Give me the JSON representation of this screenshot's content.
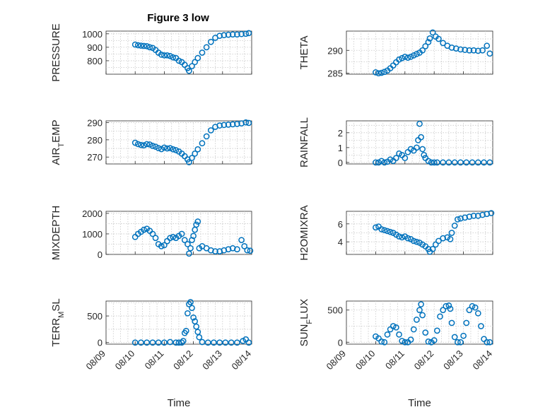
{
  "figure": {
    "title": "Figure 3 low",
    "marker_color": "#0072BD"
  },
  "chart_data": [
    {
      "type": "scatter",
      "ylabel": "PRESSURE",
      "xlabel": "",
      "ylim": [
        700,
        1020
      ],
      "yticks": [
        800,
        900,
        1000
      ],
      "xlim": [
        "08/09",
        "08/14"
      ],
      "xticklabels": [],
      "grid": true,
      "x": [
        1.0,
        1.1,
        1.2,
        1.3,
        1.4,
        1.5,
        1.6,
        1.7,
        1.8,
        1.9,
        2.0,
        2.1,
        2.2,
        2.3,
        2.4,
        2.5,
        2.6,
        2.7,
        2.8,
        2.85,
        2.95,
        3.05,
        3.15,
        3.3,
        3.45,
        3.6,
        3.75,
        3.9,
        4.05,
        4.2,
        4.35,
        4.5,
        4.65,
        4.8,
        4.9
      ],
      "y": [
        920,
        915,
        912,
        910,
        908,
        900,
        895,
        880,
        860,
        845,
        840,
        840,
        835,
        825,
        820,
        800,
        790,
        770,
        745,
        725,
        760,
        790,
        820,
        860,
        900,
        940,
        970,
        985,
        990,
        993,
        995,
        995,
        998,
        1000,
        1005
      ]
    },
    {
      "type": "scatter",
      "ylabel": "THETA",
      "xlabel": "",
      "ylim": [
        284.8,
        294.2
      ],
      "yticks": [
        285,
        290
      ],
      "xlim": [
        "08/09",
        "08/14"
      ],
      "xticklabels": [],
      "grid": true,
      "x": [
        1.0,
        1.1,
        1.2,
        1.3,
        1.4,
        1.5,
        1.6,
        1.7,
        1.8,
        1.9,
        2.0,
        2.1,
        2.2,
        2.3,
        2.4,
        2.5,
        2.6,
        2.7,
        2.8,
        2.85,
        2.95,
        3.05,
        3.15,
        3.3,
        3.45,
        3.6,
        3.75,
        3.9,
        4.05,
        4.2,
        4.35,
        4.5,
        4.65,
        4.8,
        4.9
      ],
      "y": [
        285.2,
        285.0,
        285.1,
        285.3,
        285.6,
        286.1,
        286.7,
        287.4,
        288.0,
        288.3,
        288.6,
        288.4,
        288.6,
        288.9,
        289.2,
        289.5,
        290.0,
        290.9,
        291.8,
        292.6,
        293.9,
        293.0,
        292.5,
        291.6,
        291.0,
        290.6,
        290.4,
        290.2,
        290.1,
        290.0,
        290.0,
        289.9,
        290.0,
        291.0,
        289.3
      ]
    },
    {
      "type": "scatter",
      "ylabel": "AIR_TEMP",
      "xlabel": "",
      "ylim": [
        266,
        291
      ],
      "yticks": [
        270,
        280,
        290
      ],
      "xlim": [
        "08/09",
        "08/14"
      ],
      "xticklabels": [],
      "grid": true,
      "x": [
        1.0,
        1.1,
        1.2,
        1.3,
        1.4,
        1.5,
        1.6,
        1.7,
        1.8,
        1.9,
        2.0,
        2.1,
        2.2,
        2.3,
        2.4,
        2.5,
        2.6,
        2.7,
        2.8,
        2.85,
        2.95,
        3.05,
        3.15,
        3.3,
        3.45,
        3.6,
        3.75,
        3.9,
        4.05,
        4.2,
        4.35,
        4.5,
        4.65,
        4.8,
        4.9
      ],
      "y": [
        278.3,
        277.5,
        277.0,
        276.8,
        277.5,
        277.3,
        276.5,
        276.0,
        275.2,
        274.6,
        275.5,
        275.0,
        275.2,
        274.5,
        274.0,
        273.2,
        272.0,
        270.5,
        268.6,
        267.0,
        269.5,
        272.0,
        274.5,
        278.0,
        282.0,
        285.5,
        287.5,
        288.3,
        288.6,
        288.8,
        289.0,
        289.2,
        289.5,
        290.1,
        289.8
      ]
    },
    {
      "type": "scatter",
      "ylabel": "RAINFALL",
      "xlabel": "",
      "ylim": [
        -0.1,
        2.8
      ],
      "yticks": [
        0,
        1,
        2
      ],
      "xlim": [
        "08/09",
        "08/14"
      ],
      "xticklabels": [],
      "grid": true,
      "x": [
        1.0,
        1.1,
        1.2,
        1.3,
        1.4,
        1.5,
        1.6,
        1.7,
        1.8,
        1.9,
        2.0,
        2.1,
        2.2,
        2.3,
        2.4,
        2.45,
        2.5,
        2.55,
        2.6,
        2.65,
        2.7,
        2.8,
        2.9,
        3.0,
        3.1,
        3.3,
        3.5,
        3.7,
        3.9,
        4.1,
        4.3,
        4.5,
        4.7,
        4.9
      ],
      "y": [
        0,
        0,
        0.1,
        0,
        0.05,
        0.2,
        0.1,
        0.3,
        0.6,
        0.5,
        0.3,
        0.7,
        0.9,
        0.8,
        1.0,
        1.5,
        2.6,
        1.7,
        0.9,
        0.5,
        0.3,
        0.1,
        0,
        0,
        0,
        0,
        0,
        0,
        0,
        0,
        0,
        0,
        0,
        0
      ]
    },
    {
      "type": "scatter",
      "ylabel": "MIXDEPTH",
      "xlabel": "",
      "ylim": [
        0,
        2100
      ],
      "yticks": [
        0,
        1000,
        2000
      ],
      "xlim": [
        "08/09",
        "08/14"
      ],
      "xticklabels": [],
      "grid": true,
      "x": [
        1.0,
        1.1,
        1.2,
        1.3,
        1.4,
        1.5,
        1.6,
        1.7,
        1.8,
        1.9,
        2.0,
        2.1,
        2.2,
        2.3,
        2.4,
        2.5,
        2.6,
        2.7,
        2.8,
        2.85,
        2.9,
        2.95,
        3.0,
        3.05,
        3.1,
        3.15,
        3.2,
        3.3,
        3.45,
        3.6,
        3.75,
        3.9,
        4.05,
        4.2,
        4.35,
        4.5,
        4.65,
        4.75,
        4.85,
        4.95
      ],
      "y": [
        850,
        1000,
        1100,
        1200,
        1250,
        1150,
        1000,
        800,
        500,
        400,
        450,
        650,
        800,
        850,
        800,
        900,
        1000,
        700,
        500,
        40,
        300,
        700,
        900,
        1200,
        1450,
        1600,
        300,
        400,
        300,
        200,
        150,
        150,
        200,
        250,
        300,
        250,
        700,
        400,
        200,
        180
      ]
    },
    {
      "type": "scatter",
      "ylabel": "H2OMIXRA",
      "xlabel": "",
      "ylim": [
        2.6,
        7.4
      ],
      "yticks": [
        4,
        6
      ],
      "xlim": [
        "08/09",
        "08/14"
      ],
      "xticklabels": [],
      "grid": true,
      "x": [
        1.0,
        1.1,
        1.2,
        1.3,
        1.4,
        1.5,
        1.6,
        1.7,
        1.8,
        1.9,
        2.0,
        2.1,
        2.2,
        2.3,
        2.4,
        2.5,
        2.6,
        2.7,
        2.8,
        2.85,
        2.95,
        3.05,
        3.15,
        3.3,
        3.45,
        3.55,
        3.6,
        3.7,
        3.8,
        3.9,
        4.05,
        4.2,
        4.35,
        4.5,
        4.65,
        4.8,
        4.95
      ],
      "y": [
        5.6,
        5.7,
        5.4,
        5.3,
        5.2,
        5.1,
        5.0,
        4.8,
        4.6,
        4.5,
        4.6,
        4.4,
        4.3,
        4.1,
        4.0,
        3.9,
        3.7,
        3.5,
        3.2,
        2.9,
        3.2,
        3.7,
        4.1,
        4.4,
        4.5,
        4.3,
        5.0,
        5.8,
        6.5,
        6.6,
        6.7,
        6.8,
        6.9,
        6.9,
        7.0,
        7.1,
        7.2
      ]
    },
    {
      "type": "scatter",
      "ylabel": "TERR_MSL",
      "xlabel": "Time",
      "ylim": [
        -30,
        780
      ],
      "yticks": [
        0,
        500
      ],
      "xlim": [
        "08/09",
        "08/14"
      ],
      "xticklabels": [
        "08/09",
        "08/10",
        "08/11",
        "08/12",
        "08/13",
        "08/14"
      ],
      "grid": true,
      "x": [
        1.0,
        1.2,
        1.4,
        1.6,
        1.8,
        2.0,
        2.2,
        2.4,
        2.5,
        2.6,
        2.65,
        2.7,
        2.75,
        2.8,
        2.85,
        2.9,
        2.95,
        3.0,
        3.05,
        3.1,
        3.15,
        3.2,
        3.3,
        3.5,
        3.7,
        3.9,
        4.1,
        4.3,
        4.5,
        4.7,
        4.8,
        4.9
      ],
      "y": [
        0,
        0,
        0,
        0,
        0,
        0,
        10,
        0,
        0,
        0,
        30,
        180,
        220,
        550,
        720,
        760,
        650,
        470,
        400,
        300,
        200,
        100,
        10,
        0,
        0,
        0,
        0,
        0,
        0,
        30,
        60,
        0
      ]
    },
    {
      "type": "scatter",
      "ylabel": "SUN_FLUX",
      "xlabel": "Time",
      "ylim": [
        -30,
        640
      ],
      "yticks": [
        0,
        500
      ],
      "xlim": [
        "08/09",
        "08/14"
      ],
      "xticklabels": [
        "08/09",
        "08/10",
        "08/11",
        "08/12",
        "08/13",
        "08/14"
      ],
      "grid": true,
      "x": [
        1.0,
        1.1,
        1.2,
        1.3,
        1.4,
        1.5,
        1.6,
        1.7,
        1.8,
        1.9,
        2.0,
        2.1,
        2.2,
        2.3,
        2.4,
        2.5,
        2.55,
        2.6,
        2.7,
        2.8,
        2.9,
        3.0,
        3.1,
        3.2,
        3.3,
        3.4,
        3.5,
        3.55,
        3.6,
        3.7,
        3.8,
        3.9,
        4.0,
        4.1,
        4.2,
        4.3,
        4.4,
        4.5,
        4.6,
        4.7,
        4.8,
        4.9
      ],
      "y": [
        90,
        60,
        10,
        0,
        120,
        200,
        250,
        230,
        120,
        20,
        0,
        0,
        40,
        200,
        350,
        500,
        590,
        420,
        150,
        10,
        0,
        30,
        180,
        400,
        500,
        560,
        570,
        520,
        300,
        80,
        0,
        0,
        100,
        300,
        500,
        560,
        540,
        450,
        250,
        50,
        0,
        0
      ]
    }
  ]
}
